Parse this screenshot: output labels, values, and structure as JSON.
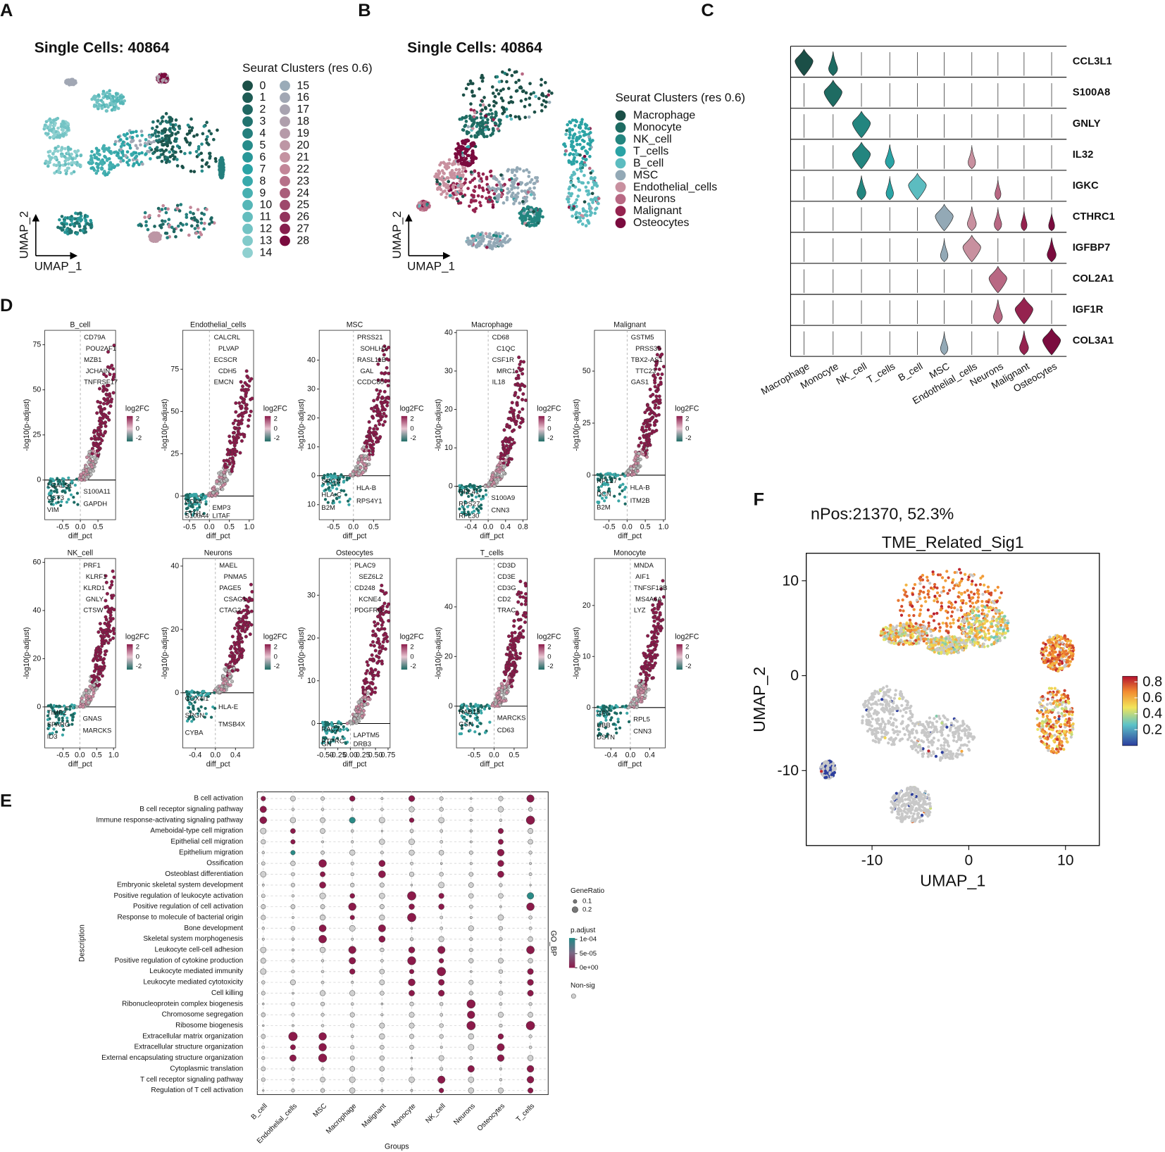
{
  "panel_labels": [
    "A",
    "B",
    "C",
    "D",
    "E",
    "F"
  ],
  "panel_a": {
    "title": "Single Cells: 40864",
    "legend_title": "Seurat Clusters (res 0.6)",
    "clusters": [
      "0",
      "1",
      "2",
      "3",
      "4",
      "5",
      "6",
      "7",
      "8",
      "9",
      "10",
      "11",
      "12",
      "13",
      "14",
      "15",
      "16",
      "17",
      "18",
      "19",
      "20",
      "21",
      "22",
      "23",
      "24",
      "25",
      "26",
      "27",
      "28"
    ],
    "x_label": "UMAP_1",
    "y_label": "UMAP_2"
  },
  "panel_b": {
    "title": "Single Cells: 40864",
    "legend_title": "Seurat Clusters (res 0.6)",
    "cell_types": [
      "Macrophage",
      "Monocyte",
      "NK_cell",
      "T_cells",
      "B_cell",
      "MSC",
      "Endothelial_cells",
      "Neurons",
      "Malignant",
      "Osteocytes"
    ],
    "x_label": "UMAP_1",
    "y_label": "UMAP_2"
  },
  "panel_c": {
    "genes": [
      "CCL3L1",
      "S100A8",
      "GNLY",
      "IL32",
      "IGKC",
      "CTHRC1",
      "IGFBP7",
      "COL2A1",
      "IGF1R",
      "COL3A1"
    ],
    "groups": [
      "Macrophage",
      "Monocyte",
      "NK_cell",
      "T_cells",
      "B_cell",
      "MSC",
      "Endothelial_cells",
      "Neurons",
      "Malignant",
      "Osteocytes"
    ],
    "expressed_in": [
      [
        0,
        1
      ],
      [
        1
      ],
      [
        2
      ],
      [
        2,
        3,
        6
      ],
      [
        4,
        2,
        3,
        7
      ],
      [
        5,
        6,
        7,
        8,
        9
      ],
      [
        6,
        9,
        5
      ],
      [
        7
      ],
      [
        8,
        7
      ],
      [
        9,
        8,
        5
      ]
    ]
  },
  "panel_d": {
    "x_label": "diff_pct",
    "y_label": "-log10(p-adjust)",
    "legend_title": "log2FC",
    "legend_ticks": [
      2,
      0,
      -2
    ],
    "plots": [
      {
        "title": "B_cell",
        "xlim": [
          -1.01,
          1.0
        ],
        "ylim": [
          -22,
          83
        ],
        "xticks": [
          -0.5,
          {
            "value": 0,
            "label": "0.0"
          },
          0.5
        ],
        "yticks": [
          0,
          25,
          50,
          75
        ],
        "up_genes": [
          "CD79A",
          "POU2AF1",
          "MZB1",
          "JCHAIN",
          "TNFRSF17"
        ],
        "down_genes": [
          "LGALS1",
          "S100A11",
          "CST3",
          "GAPDH",
          "VIM"
        ]
      },
      {
        "title": "Endothelial_cells",
        "xlim": [
          -0.67,
          1.11
        ],
        "ylim": [
          -14,
          98
        ],
        "xticks": [
          -0.5,
          {
            "value": 0,
            "label": "0.0"
          },
          0.5,
          {
            "value": 1,
            "label": "1.0"
          }
        ],
        "yticks": [
          0,
          25,
          50,
          75
        ],
        "up_genes": [
          "CALCRL",
          "PLVAP",
          "ECSCR",
          "CDH5",
          "EMCN"
        ],
        "down_genes": [
          "CD44",
          "EMP3",
          "FTH1",
          "LITAF",
          "S100A4"
        ]
      },
      {
        "title": "MSC",
        "xlim": [
          -0.85,
          0.91
        ],
        "ylim": [
          -15.2,
          50.3
        ],
        "xticks": [
          -0.5,
          {
            "value": 0,
            "label": "0.0"
          },
          0.5
        ],
        "yticks": [
          {
            "value": -10,
            "label": "10"
          },
          0,
          10,
          20,
          30,
          40
        ],
        "up_genes": [
          "PRSS21",
          "SOHLH1",
          "RASL11B",
          "GAL",
          "CCDC80"
        ],
        "down_genes": [
          "SRGN",
          "HLA-B",
          "HLA-C",
          "RPS4Y1",
          "B2M"
        ]
      },
      {
        "title": "Macrophage",
        "xlim": [
          -0.73,
          0.9
        ],
        "ylim": [
          -8.7,
          40.6
        ],
        "xticks": [
          -0.4,
          {
            "value": 0,
            "label": "0.0"
          },
          0.4,
          0.8
        ],
        "yticks": [
          0,
          10,
          20,
          30,
          40
        ],
        "up_genes": [
          "CD68",
          "C1QC",
          "CSF1R",
          "MRC1",
          "IL18"
        ],
        "down_genes": [
          "RPL41",
          "S100A9",
          "RPS27",
          "CNN3",
          "RPL30"
        ]
      },
      {
        "title": "Malignant",
        "xlim": [
          -0.9,
          1.05
        ],
        "ylim": [
          -21.4,
          69.6
        ],
        "xticks": [
          -0.5,
          {
            "value": 0,
            "label": "0.0"
          },
          0.5,
          {
            "value": 1,
            "label": "1.0"
          }
        ],
        "yticks": [
          0,
          25,
          50
        ],
        "up_genes": [
          "GSTM5",
          "PRSS35",
          "TBX2-AS1",
          "TTC23",
          "GAS1"
        ],
        "down_genes": [
          "RPL27",
          "HLA-B",
          "DCN",
          "ITM2B",
          "B2M"
        ]
      },
      {
        "title": "NK_cell",
        "xlim": [
          -1.04,
          1.06
        ],
        "ylim": [
          -17,
          61.6
        ],
        "xticks": [
          -0.5,
          {
            "value": 0,
            "label": "0.0"
          },
          0.5,
          {
            "value": 1,
            "label": "1.0"
          }
        ],
        "yticks": [
          0,
          20,
          40,
          60
        ],
        "up_genes": [
          "PRF1",
          "KLRF1",
          "KLRD1",
          "GNLY",
          "CTSW"
        ],
        "down_genes": [
          "TIMP2",
          "GNAS",
          "SPARC",
          "MARCKS",
          "ID3"
        ]
      },
      {
        "title": "Neurons",
        "xlim": [
          -0.65,
          0.76
        ],
        "ylim": [
          -17.4,
          42.4
        ],
        "xticks": [
          -0.4,
          {
            "value": 0,
            "label": "0.0"
          },
          0.4
        ],
        "yticks": [
          0,
          20,
          40
        ],
        "up_genes": [
          "MAEL",
          "PNMA5",
          "PAGE5",
          "CSAG1",
          "CTAG2"
        ],
        "down_genes": [
          "COX4I1",
          "HLA-E",
          "SRGN",
          "TMSB4X",
          "CYBA"
        ]
      },
      {
        "title": "Osteocytes",
        "xlim": [
          -0.62,
          0.79
        ],
        "ylim": [
          -5.7,
          38.6
        ],
        "xticks": [
          {
            "value": -0.5,
            "label": "-0.50"
          },
          -0.25,
          {
            "value": 0,
            "label": "0.00"
          },
          0.25,
          {
            "value": 0.5,
            "label": "0.50"
          },
          0.75
        ],
        "yticks": [
          0,
          10,
          20,
          30
        ],
        "up_genes": [
          "PLAC9",
          "SEZ6L2",
          "CD248",
          "KCNE4",
          "PDGFRB"
        ],
        "down_genes": [
          "RAC2",
          "LAPTM5",
          "PTPRC",
          "DRB3",
          "GN"
        ]
      },
      {
        "title": "T_cells",
        "xlim": [
          -0.94,
          0.83
        ],
        "ylim": [
          -16.8,
          59.5
        ],
        "xticks": [
          -0.5,
          {
            "value": 0,
            "label": "0.0"
          },
          0.5
        ],
        "yticks": [
          0,
          20,
          40
        ],
        "up_genes": [
          "CD3D",
          "CD3E",
          "CD3G",
          "CD2",
          "TRAC"
        ],
        "down_genes": [
          "RAB13",
          "MARCKS",
          "GSN",
          "CD63"
        ]
      },
      {
        "title": "Monocyte",
        "xlim": [
          -0.74,
          0.72
        ],
        "ylim": [
          -7.9,
          29.2
        ],
        "xticks": [
          -0.4,
          {
            "value": 0,
            "label": "0.0"
          },
          0.4
        ],
        "yticks": [
          0,
          10,
          20
        ],
        "up_genes": [
          "MNDA",
          "AIF1",
          "TNFSF13B",
          "MS4A6A",
          "LYZ"
        ],
        "down_genes": [
          "CPE",
          "RPL5",
          "UBB",
          "CNN3",
          "DSTN"
        ]
      }
    ]
  },
  "panel_e": {
    "terms": [
      "B cell activation",
      "B cell receptor signaling pathway",
      "Immune response-activating signaling pathway",
      "Ameboidal-type cell migration",
      "Epithelial cell migration",
      "Epithelium migration",
      "Ossification",
      "Osteoblast differentiation",
      "Embryonic skeletal system development",
      "Positive regulation of leukocyte activation",
      "Positive regulation of cell activation",
      "Response to molecule of bacterial origin",
      "Bone development",
      "Skeletal system morphogenesis",
      "Leukocyte cell-cell adhesion",
      "Positive regulation of cytokine production",
      "Leukocyte mediated immunity",
      "Leukocyte mediated cytotoxicity",
      "Cell killing",
      "Ribonucleoprotein complex biogenesis",
      "Chromosome segregation",
      "Ribosome biogenesis",
      "Extracellular matrix organization",
      "Extracellular structure organization",
      "External encapsulating structure organization",
      "Cytoplasmic translation",
      "T cell receptor signaling pathway",
      "Regulation of T cell activation"
    ],
    "groups": [
      "B_cell",
      "Endothelial_cells",
      "MSC",
      "Macrophage",
      "Malignant",
      "Monocyte",
      "NK_cell",
      "Neurons",
      "Osteocytes",
      "T_cells"
    ],
    "significant": [
      [
        0,
        3,
        5,
        9
      ],
      [
        0
      ],
      [
        0,
        3,
        5,
        9
      ],
      [
        1,
        8
      ],
      [
        1,
        8
      ],
      [
        1,
        8
      ],
      [
        2,
        4,
        8
      ],
      [
        2,
        4,
        8
      ],
      [
        2
      ],
      [
        3,
        5,
        6,
        9
      ],
      [
        3,
        5,
        6,
        9
      ],
      [
        3,
        5
      ],
      [
        2,
        4
      ],
      [
        2,
        4
      ],
      [
        3,
        5,
        6,
        9
      ],
      [
        3,
        5,
        6
      ],
      [
        3,
        5,
        6,
        9
      ],
      [
        5,
        6,
        9
      ],
      [
        5,
        6,
        9
      ],
      [
        7
      ],
      [
        7
      ],
      [
        7,
        9
      ],
      [
        1,
        2,
        8
      ],
      [
        1,
        2,
        8
      ],
      [
        1,
        2,
        8
      ],
      [
        7,
        9
      ],
      [
        6,
        9
      ],
      [
        6,
        9
      ]
    ],
    "x_label": "Groups",
    "y_label": "Description",
    "ontology": "GO_BP",
    "size_title": "GeneRatio",
    "size_ticks": [
      0.1,
      0.2
    ],
    "color_title": "p.adjust",
    "plim": [
      0,
      0.000105
    ],
    "color_ticks": [
      {
        "value": 0.0001,
        "label": "1e-04"
      },
      {
        "value": 5e-05,
        "label": "5e-05"
      },
      {
        "value": 0,
        "label": "0e+00"
      }
    ],
    "nonsig_label": "Non-sig"
  },
  "panel_f": {
    "annotation": "nPos:21370, 52.3%",
    "title": "TME_Related_Sig1",
    "x_label": "UMAP_1",
    "y_label": "UMAP_2",
    "xlim": [
      -16.8,
      13.5
    ],
    "ylim": [
      -17.9,
      12.9
    ],
    "xticks": [
      -10,
      0,
      10
    ],
    "yticks": [
      -10,
      0,
      10
    ],
    "clim": [
      0,
      0.87
    ],
    "colorbar_ticks": [
      0.2,
      0.4,
      0.6,
      0.8
    ]
  }
}
